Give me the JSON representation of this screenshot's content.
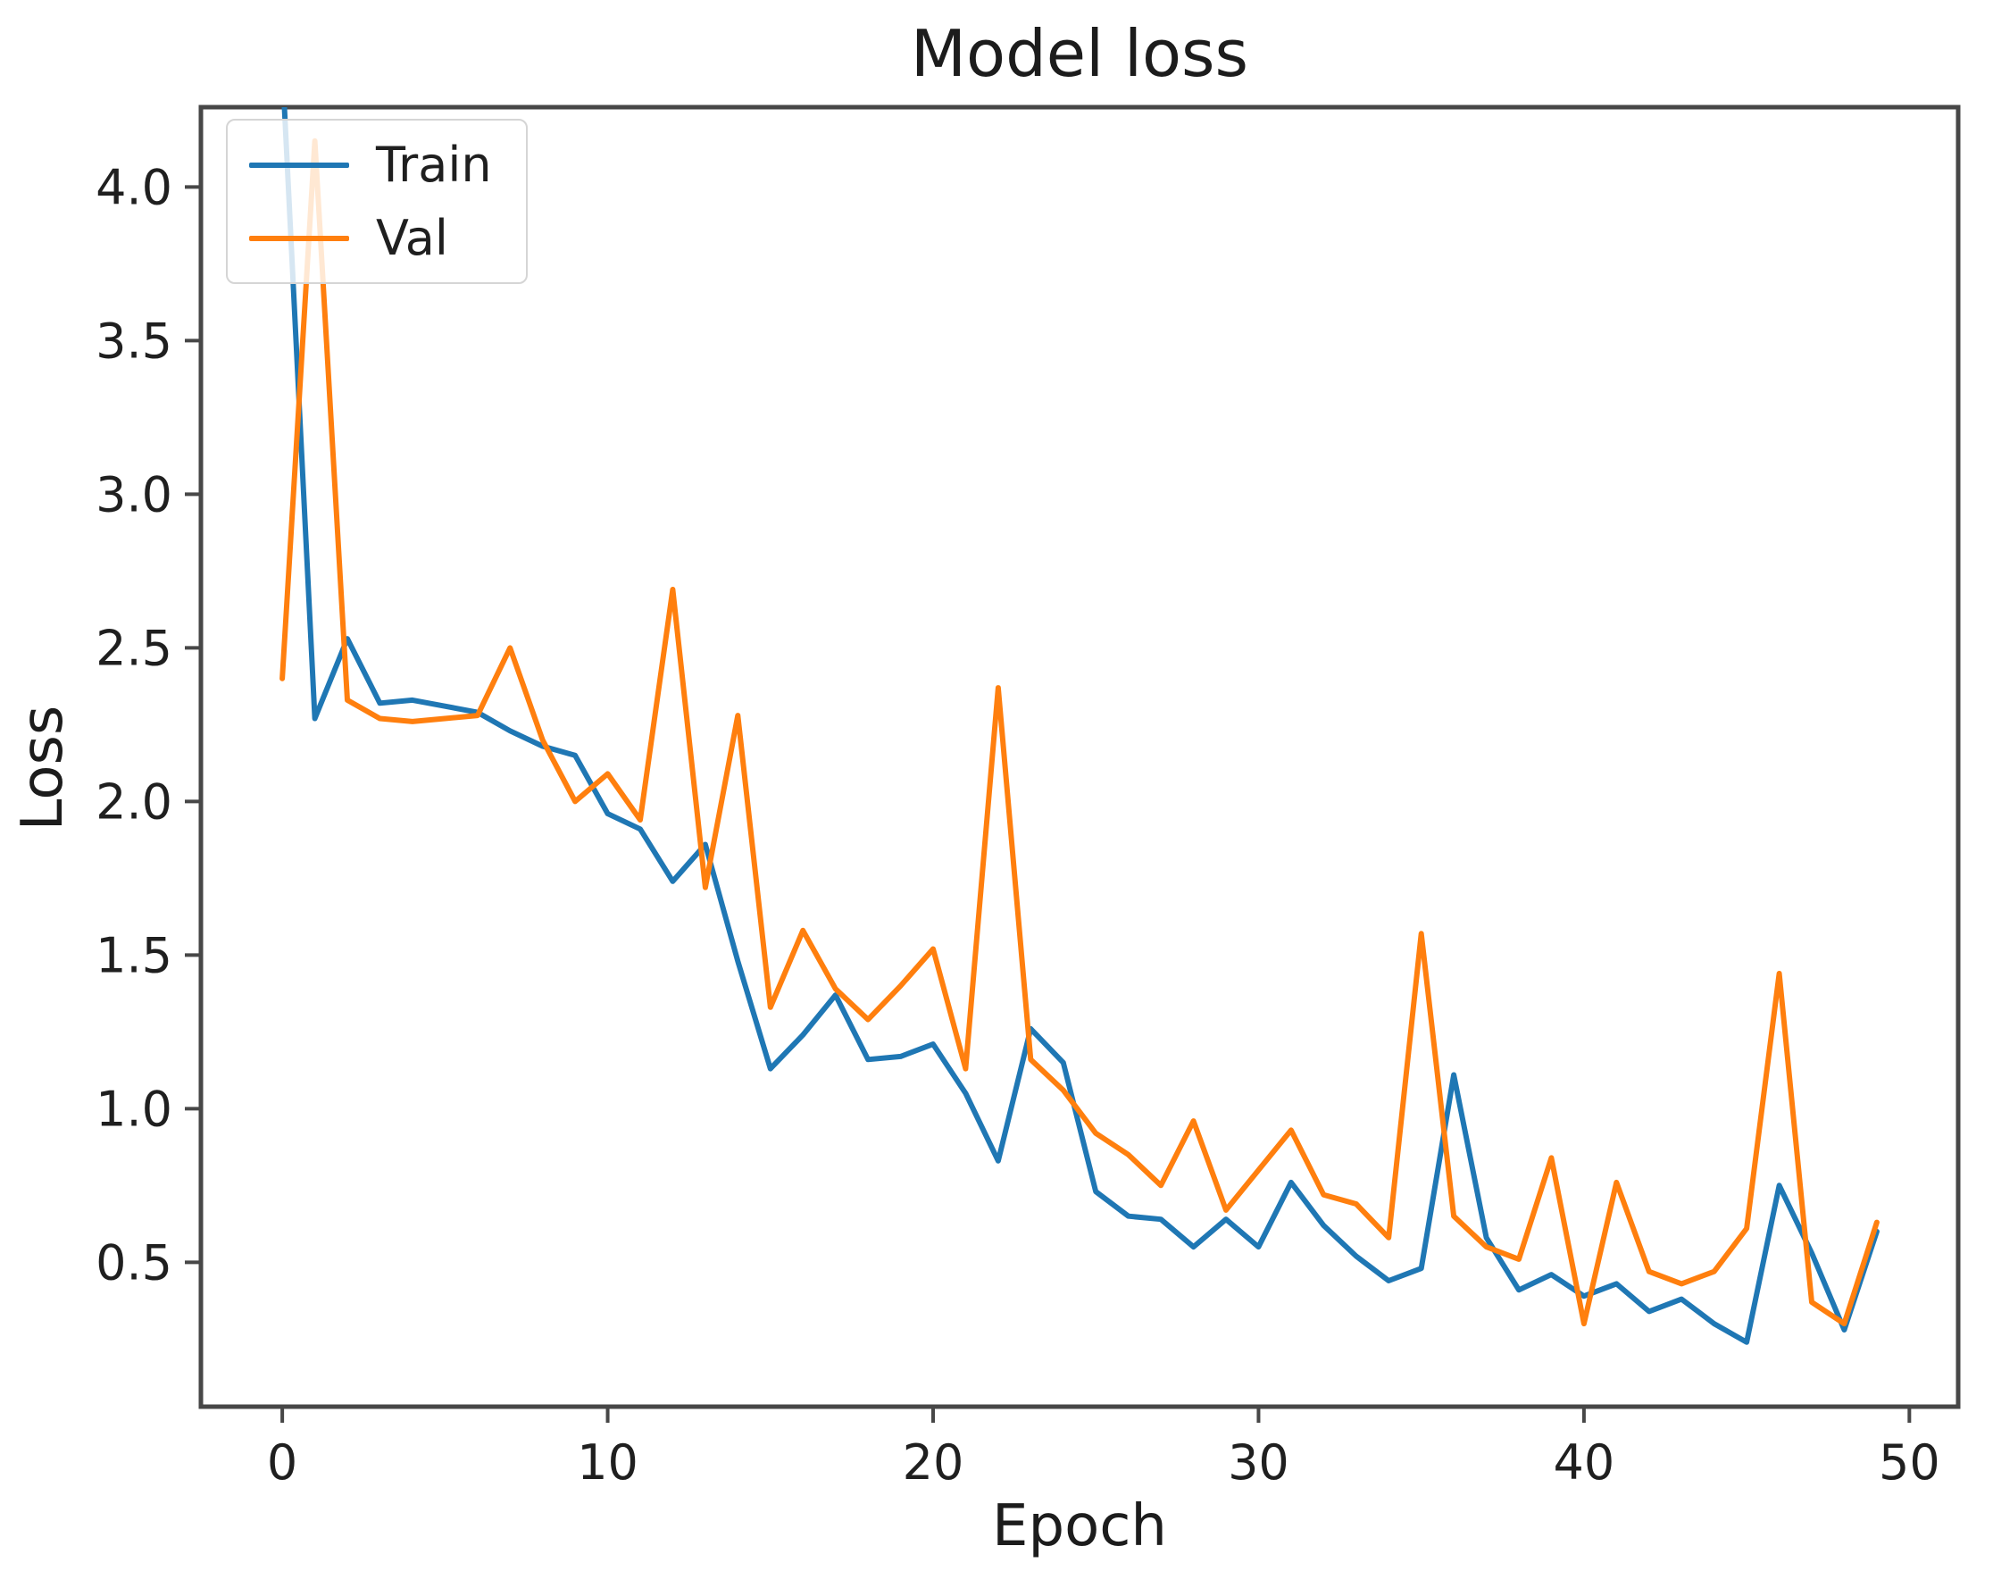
{
  "figure": {
    "title": "Model loss",
    "x_axis_label": "Epoch",
    "y_axis_label": "Loss"
  },
  "legend": {
    "position": "upper left",
    "entries": [
      {
        "label": "Train",
        "color": "#1f77b4"
      },
      {
        "label": "Val",
        "color": "#ff7f0e"
      }
    ]
  },
  "chart_data": {
    "type": "line",
    "title": "Model loss",
    "xlabel": "Epoch",
    "ylabel": "Loss",
    "grid": false,
    "legend_position": "upper left",
    "xlim": [
      -2.5,
      51.5
    ],
    "ylim": [
      0.03,
      4.26
    ],
    "x_ticks": [
      0,
      10,
      20,
      30,
      40,
      50
    ],
    "x_tick_labels": [
      "0",
      "10",
      "20",
      "30",
      "40",
      "50"
    ],
    "y_ticks": [
      0.5,
      1.0,
      1.5,
      2.0,
      2.5,
      3.0,
      3.5,
      4.0
    ],
    "y_tick_labels": [
      "0.5",
      "1.0",
      "1.5",
      "2.0",
      "2.5",
      "3.0",
      "3.5",
      "4.0"
    ],
    "x": [
      0,
      1,
      2,
      3,
      4,
      5,
      6,
      7,
      8,
      9,
      10,
      11,
      12,
      13,
      14,
      15,
      16,
      17,
      18,
      19,
      20,
      21,
      22,
      23,
      24,
      25,
      26,
      27,
      28,
      29,
      30,
      31,
      32,
      33,
      34,
      35,
      36,
      37,
      38,
      39,
      40,
      41,
      42,
      43,
      44,
      45,
      46,
      47,
      48,
      49
    ],
    "series": [
      {
        "name": "Train",
        "color": "#1f77b4",
        "values": [
          4.4,
          2.27,
          2.53,
          2.32,
          2.33,
          2.31,
          2.29,
          2.23,
          2.18,
          2.15,
          1.96,
          1.91,
          1.74,
          1.86,
          1.48,
          1.13,
          1.24,
          1.37,
          1.16,
          1.17,
          1.21,
          1.05,
          0.83,
          1.26,
          1.15,
          0.73,
          0.65,
          0.64,
          0.55,
          0.64,
          0.55,
          0.76,
          0.62,
          0.52,
          0.44,
          0.48,
          1.11,
          0.58,
          0.41,
          0.46,
          0.39,
          0.43,
          0.34,
          0.38,
          0.3,
          0.24,
          0.75,
          0.53,
          0.28,
          0.6
        ]
      },
      {
        "name": "Val",
        "color": "#ff7f0e",
        "values": [
          2.4,
          4.15,
          2.33,
          2.27,
          2.26,
          2.27,
          2.28,
          2.5,
          2.2,
          2.0,
          2.09,
          1.94,
          2.69,
          1.72,
          2.28,
          1.33,
          1.58,
          1.39,
          1.29,
          1.4,
          1.52,
          1.13,
          2.37,
          1.16,
          1.06,
          0.92,
          0.85,
          0.75,
          0.96,
          0.67,
          0.8,
          0.93,
          0.72,
          0.69,
          0.58,
          1.57,
          0.65,
          0.55,
          0.51,
          0.84,
          0.3,
          0.76,
          0.47,
          0.43,
          0.47,
          0.61,
          1.44,
          0.37,
          0.3,
          0.63
        ]
      }
    ]
  }
}
